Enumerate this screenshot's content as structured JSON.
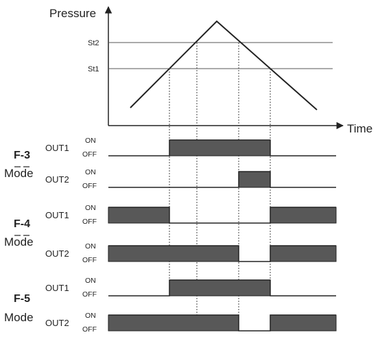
{
  "axes": {
    "y_label": "Pressure",
    "x_label": "Time"
  },
  "setpoints": [
    {
      "label": "St2"
    },
    {
      "label": "St1"
    }
  ],
  "state_labels": {
    "on": "ON",
    "off": "OFF"
  },
  "modes": [
    {
      "code": "F-3",
      "word": "Mode",
      "outputs": [
        {
          "name": "OUT1",
          "levels": [
            "off",
            "on",
            "on",
            "off"
          ]
        },
        {
          "name": "OUT2",
          "levels": [
            "off",
            "off",
            "on",
            "off"
          ]
        }
      ]
    },
    {
      "code": "F-4",
      "word": "Mode",
      "outputs": [
        {
          "name": "OUT1",
          "levels": [
            "on",
            "off",
            "off",
            "on"
          ]
        },
        {
          "name": "OUT2",
          "levels": [
            "on",
            "on",
            "off",
            "on"
          ]
        }
      ]
    },
    {
      "code": "F-5",
      "word": "Mode",
      "outputs": [
        {
          "name": "OUT1",
          "levels": [
            "off",
            "on",
            "on",
            "off"
          ]
        },
        {
          "name": "OUT2",
          "levels": [
            "on",
            "on",
            "off",
            "on"
          ]
        }
      ]
    }
  ]
}
